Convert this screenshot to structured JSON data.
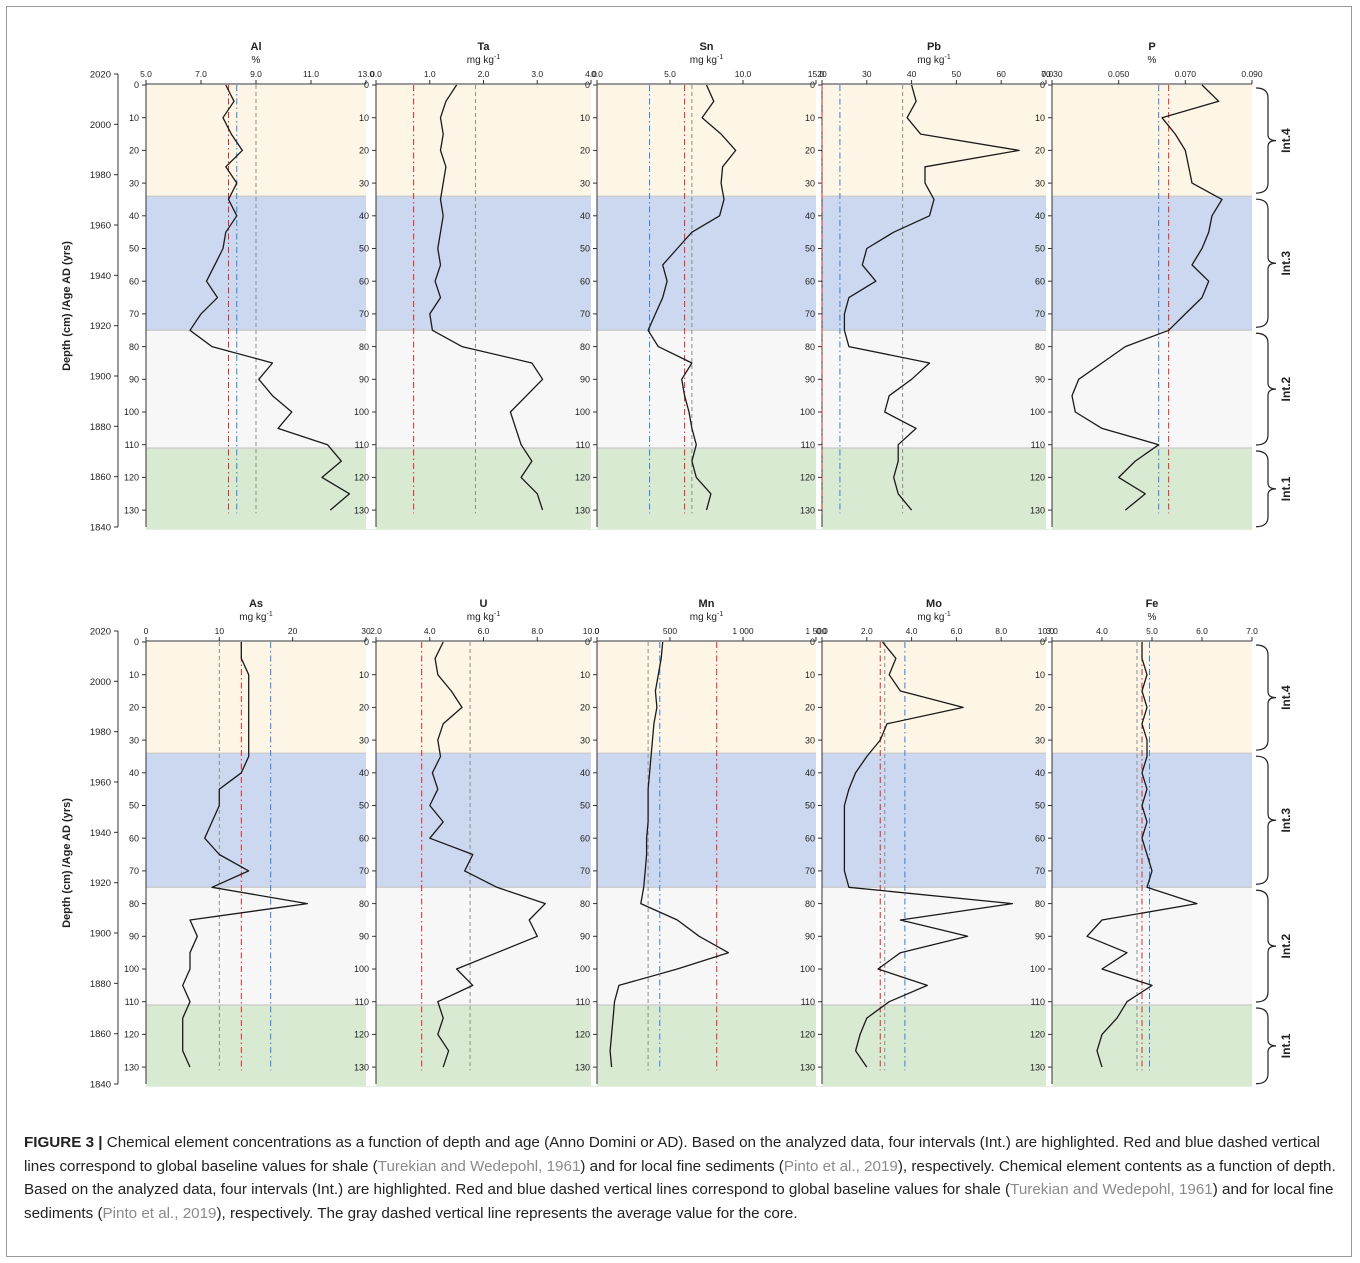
{
  "figure": {
    "caption_label": "FIGURE 3 |",
    "caption_parts": [
      {
        "text": " Chemical element concentrations as a function of depth and age (Anno Domini or AD). Based on the analyzed data, four intervals (Int.) are highlighted. Red and blue dashed vertical lines correspond to global baseline values for shale (",
        "cite": false
      },
      {
        "text": "Turekian and Wedepohl, 1961",
        "cite": true
      },
      {
        "text": ") and for local fine sediments (",
        "cite": false
      },
      {
        "text": "Pinto et al., 2019",
        "cite": true
      },
      {
        "text": "), respectively. Chemical element contents as a function of depth. Based on the analyzed data, four intervals (Int.) are highlighted. Red and blue dashed vertical lines correspond to global baseline values for shale (",
        "cite": false
      },
      {
        "text": "Turekian and Wedepohl, 1961",
        "cite": true
      },
      {
        "text": ") and for local fine sediments (",
        "cite": false
      },
      {
        "text": "Pinto et al., 2019",
        "cite": true
      },
      {
        "text": "), respectively. The gray dashed vertical line represents the average value for the core.",
        "cite": false
      }
    ],
    "y_axis_label": "Depth  (cm) /Age AD (yrs)",
    "depth_ticks": [
      0,
      10,
      20,
      30,
      40,
      50,
      60,
      70,
      80,
      90,
      100,
      110,
      120,
      130
    ],
    "age_ticks": [
      "2020",
      "2000",
      "1980",
      "1960",
      "1940",
      "1920",
      "1900",
      "1880",
      "1860",
      "1840"
    ],
    "colors": {
      "int4": "#fdf6e6",
      "int3": "#cbd8ef",
      "int2": "#f7f7f7",
      "int1": "#d9ead3",
      "line": "#1a1a1a",
      "red": "#d42a2a",
      "blue": "#3a7fcf",
      "gray": "#8c8c8c"
    }
  },
  "chart_data": [
    {
      "type": "line",
      "row": 0,
      "col": 0,
      "element": "Al",
      "unit": "%",
      "xlim": [
        5,
        13
      ],
      "ticks": [
        "5.0",
        "7.0",
        "9.0",
        "11.0",
        "13.0"
      ],
      "depth": [
        0,
        5,
        10,
        15,
        20,
        25,
        30,
        35,
        40,
        45,
        50,
        55,
        60,
        65,
        70,
        75,
        80,
        85,
        90,
        95,
        100,
        105,
        110,
        115,
        120,
        125,
        130
      ],
      "values": [
        7.9,
        8.2,
        7.8,
        8.1,
        8.5,
        7.9,
        8.3,
        8.0,
        8.3,
        7.9,
        7.8,
        7.5,
        7.2,
        7.6,
        7.0,
        6.6,
        7.4,
        9.6,
        9.1,
        9.6,
        10.3,
        9.8,
        11.6,
        12.1,
        11.4,
        12.4,
        11.7
      ],
      "red": 8.0,
      "blue": 8.3,
      "gray": 9.0
    },
    {
      "type": "line",
      "row": 0,
      "col": 1,
      "element": "Ta",
      "unit": "mg kg-1",
      "xlim": [
        0,
        4
      ],
      "ticks": [
        "0.0",
        "1.0",
        "2.0",
        "3.0",
        "4.0"
      ],
      "depth": [
        0,
        5,
        10,
        15,
        20,
        25,
        30,
        35,
        40,
        45,
        50,
        55,
        60,
        65,
        70,
        75,
        80,
        85,
        90,
        95,
        100,
        105,
        110,
        115,
        120,
        125,
        130
      ],
      "values": [
        1.5,
        1.3,
        1.2,
        1.25,
        1.2,
        1.3,
        1.25,
        1.2,
        1.25,
        1.2,
        1.15,
        1.2,
        1.1,
        1.2,
        1.0,
        1.05,
        1.6,
        2.9,
        3.1,
        2.8,
        2.5,
        2.6,
        2.7,
        2.9,
        2.7,
        3.0,
        3.1
      ],
      "red": 0.7,
      "blue": null,
      "gray": 1.85
    },
    {
      "type": "line",
      "row": 0,
      "col": 2,
      "element": "Sn",
      "unit": "mg kg-1",
      "xlim": [
        0,
        15
      ],
      "ticks": [
        "0.0",
        "5.0",
        "10.0",
        "15.0"
      ],
      "depth": [
        0,
        5,
        10,
        15,
        20,
        25,
        30,
        35,
        40,
        45,
        50,
        55,
        60,
        65,
        70,
        75,
        80,
        85,
        90,
        95,
        100,
        105,
        110,
        115,
        120,
        125,
        130
      ],
      "values": [
        7.5,
        8.0,
        7.2,
        8.5,
        9.5,
        8.6,
        8.5,
        8.7,
        8.4,
        6.5,
        5.5,
        4.5,
        4.8,
        4.5,
        4.0,
        3.5,
        4.2,
        6.5,
        5.8,
        6.0,
        6.3,
        6.5,
        6.8,
        6.5,
        6.8,
        7.8,
        7.5
      ],
      "red": 6.0,
      "blue": 3.6,
      "gray": 6.5
    },
    {
      "type": "line",
      "row": 0,
      "col": 3,
      "element": "Pb",
      "unit": "mg kg-1",
      "xlim": [
        20,
        70
      ],
      "ticks": [
        "20",
        "30",
        "40",
        "50",
        "60",
        "70"
      ],
      "depth": [
        0,
        5,
        10,
        15,
        20,
        25,
        30,
        35,
        40,
        45,
        50,
        55,
        60,
        65,
        70,
        75,
        80,
        85,
        90,
        95,
        100,
        105,
        110,
        115,
        120,
        125,
        130
      ],
      "values": [
        40,
        41,
        39,
        42,
        64,
        43,
        43,
        45,
        44,
        36,
        30,
        29,
        32,
        26,
        25,
        25,
        26,
        44,
        40,
        35,
        34,
        41,
        37,
        37,
        36,
        37,
        40
      ],
      "red": 20,
      "blue": 24,
      "gray": 38
    },
    {
      "type": "line",
      "row": 0,
      "col": 4,
      "element": "P",
      "unit": "%",
      "xlim": [
        0.03,
        0.09
      ],
      "ticks": [
        "0.030",
        "0.050",
        "0.070",
        "0.090"
      ],
      "depth": [
        0,
        5,
        10,
        15,
        20,
        25,
        30,
        35,
        40,
        45,
        50,
        55,
        60,
        65,
        70,
        75,
        80,
        85,
        90,
        95,
        100,
        105,
        110,
        115,
        120,
        125,
        130
      ],
      "values": [
        0.075,
        0.08,
        0.063,
        0.067,
        0.07,
        0.071,
        0.072,
        0.081,
        0.078,
        0.077,
        0.075,
        0.072,
        0.077,
        0.075,
        0.07,
        0.065,
        0.052,
        0.045,
        0.038,
        0.036,
        0.037,
        0.045,
        0.062,
        0.055,
        0.05,
        0.058,
        0.052
      ],
      "red": 0.065,
      "blue": 0.062,
      "gray": null
    },
    {
      "type": "line",
      "row": 1,
      "col": 0,
      "element": "As",
      "unit": "mg kg-1",
      "xlim": [
        0,
        30
      ],
      "ticks": [
        "0",
        "10",
        "20",
        "30"
      ],
      "depth": [
        0,
        5,
        10,
        15,
        20,
        25,
        30,
        35,
        40,
        45,
        50,
        55,
        60,
        65,
        70,
        75,
        80,
        85,
        90,
        95,
        100,
        105,
        110,
        115,
        120,
        125,
        130
      ],
      "values": [
        13,
        13,
        14,
        14,
        14,
        14,
        14,
        14,
        13,
        10,
        10,
        9,
        8,
        10,
        14,
        9,
        22,
        6,
        7,
        6,
        6,
        5,
        6,
        5,
        5,
        5,
        6
      ],
      "red": 13,
      "blue": 17,
      "gray": 10
    },
    {
      "type": "line",
      "row": 1,
      "col": 1,
      "element": "U",
      "unit": "mg kg-1",
      "xlim": [
        2,
        10
      ],
      "ticks": [
        "2.0",
        "4.0",
        "6.0",
        "8.0",
        "10.0"
      ],
      "depth": [
        0,
        5,
        10,
        15,
        20,
        25,
        30,
        35,
        40,
        45,
        50,
        55,
        60,
        65,
        70,
        75,
        80,
        85,
        90,
        95,
        100,
        105,
        110,
        115,
        120,
        125,
        130
      ],
      "values": [
        4.5,
        4.2,
        4.3,
        4.8,
        5.2,
        4.5,
        4.3,
        4.4,
        4.1,
        4.3,
        4.0,
        4.5,
        4.0,
        5.6,
        5.3,
        6.5,
        8.3,
        7.7,
        8.0,
        6.5,
        5.0,
        5.6,
        4.3,
        4.5,
        4.3,
        4.7,
        4.5
      ],
      "red": 3.7,
      "blue": null,
      "gray": 5.5
    },
    {
      "type": "line",
      "row": 1,
      "col": 2,
      "element": "Mn",
      "unit": "mg kg-1",
      "xlim": [
        0,
        1500
      ],
      "ticks": [
        "0",
        "500",
        "1 000",
        "1 500"
      ],
      "depth": [
        0,
        5,
        10,
        15,
        20,
        25,
        30,
        35,
        40,
        45,
        50,
        55,
        60,
        65,
        70,
        75,
        80,
        85,
        90,
        95,
        100,
        105,
        110,
        115,
        120,
        125,
        130
      ],
      "values": [
        450,
        440,
        420,
        400,
        410,
        390,
        380,
        370,
        360,
        350,
        350,
        350,
        340,
        340,
        330,
        320,
        300,
        550,
        700,
        900,
        550,
        150,
        120,
        110,
        100,
        90,
        100
      ],
      "red": 820,
      "blue": 430,
      "gray": 350
    },
    {
      "type": "line",
      "row": 1,
      "col": 3,
      "element": "Mo",
      "unit": "mg kg-1",
      "xlim": [
        0,
        10
      ],
      "ticks": [
        "0.0",
        "2.0",
        "4.0",
        "6.0",
        "8.0",
        "10.0"
      ],
      "depth": [
        0,
        5,
        10,
        15,
        20,
        25,
        30,
        35,
        40,
        45,
        50,
        55,
        60,
        65,
        70,
        75,
        80,
        85,
        90,
        95,
        100,
        105,
        110,
        115,
        120,
        125,
        130
      ],
      "values": [
        2.7,
        3.3,
        3.0,
        3.5,
        6.3,
        2.9,
        2.6,
        2.0,
        1.5,
        1.2,
        1.0,
        1.0,
        1.0,
        1.0,
        1.0,
        1.2,
        8.5,
        3.5,
        6.5,
        3.5,
        2.5,
        4.7,
        3.0,
        2.0,
        1.7,
        1.5,
        2.0
      ],
      "red": 2.6,
      "blue": 3.7,
      "gray": 2.8
    },
    {
      "type": "line",
      "row": 1,
      "col": 4,
      "element": "Fe",
      "unit": "%",
      "xlim": [
        3,
        7
      ],
      "ticks": [
        "3.0",
        "4.0",
        "5.0",
        "6.0",
        "7.0"
      ],
      "depth": [
        0,
        5,
        10,
        15,
        20,
        25,
        30,
        35,
        40,
        45,
        50,
        55,
        60,
        65,
        70,
        75,
        80,
        85,
        90,
        95,
        100,
        105,
        110,
        115,
        120,
        125,
        130
      ],
      "values": [
        4.8,
        4.8,
        4.9,
        4.8,
        4.9,
        4.8,
        4.9,
        4.9,
        4.8,
        4.9,
        4.8,
        4.9,
        4.8,
        4.9,
        5.0,
        4.9,
        5.9,
        4.0,
        3.7,
        4.5,
        4.0,
        5.0,
        4.5,
        4.3,
        4.0,
        3.9,
        4.0
      ],
      "red": 4.8,
      "blue": 4.95,
      "gray": 4.7
    }
  ],
  "intervals": [
    {
      "label": "Int.4",
      "from": 0,
      "to": 34,
      "color": "#fdf6e6"
    },
    {
      "label": "Int.3",
      "from": 34,
      "to": 75,
      "color": "#cbd8ef"
    },
    {
      "label": "Int.2",
      "from": 75,
      "to": 111,
      "color": "#f7f7f7"
    },
    {
      "label": "Int.1",
      "from": 111,
      "to": 136,
      "color": "#d9ead3"
    }
  ]
}
